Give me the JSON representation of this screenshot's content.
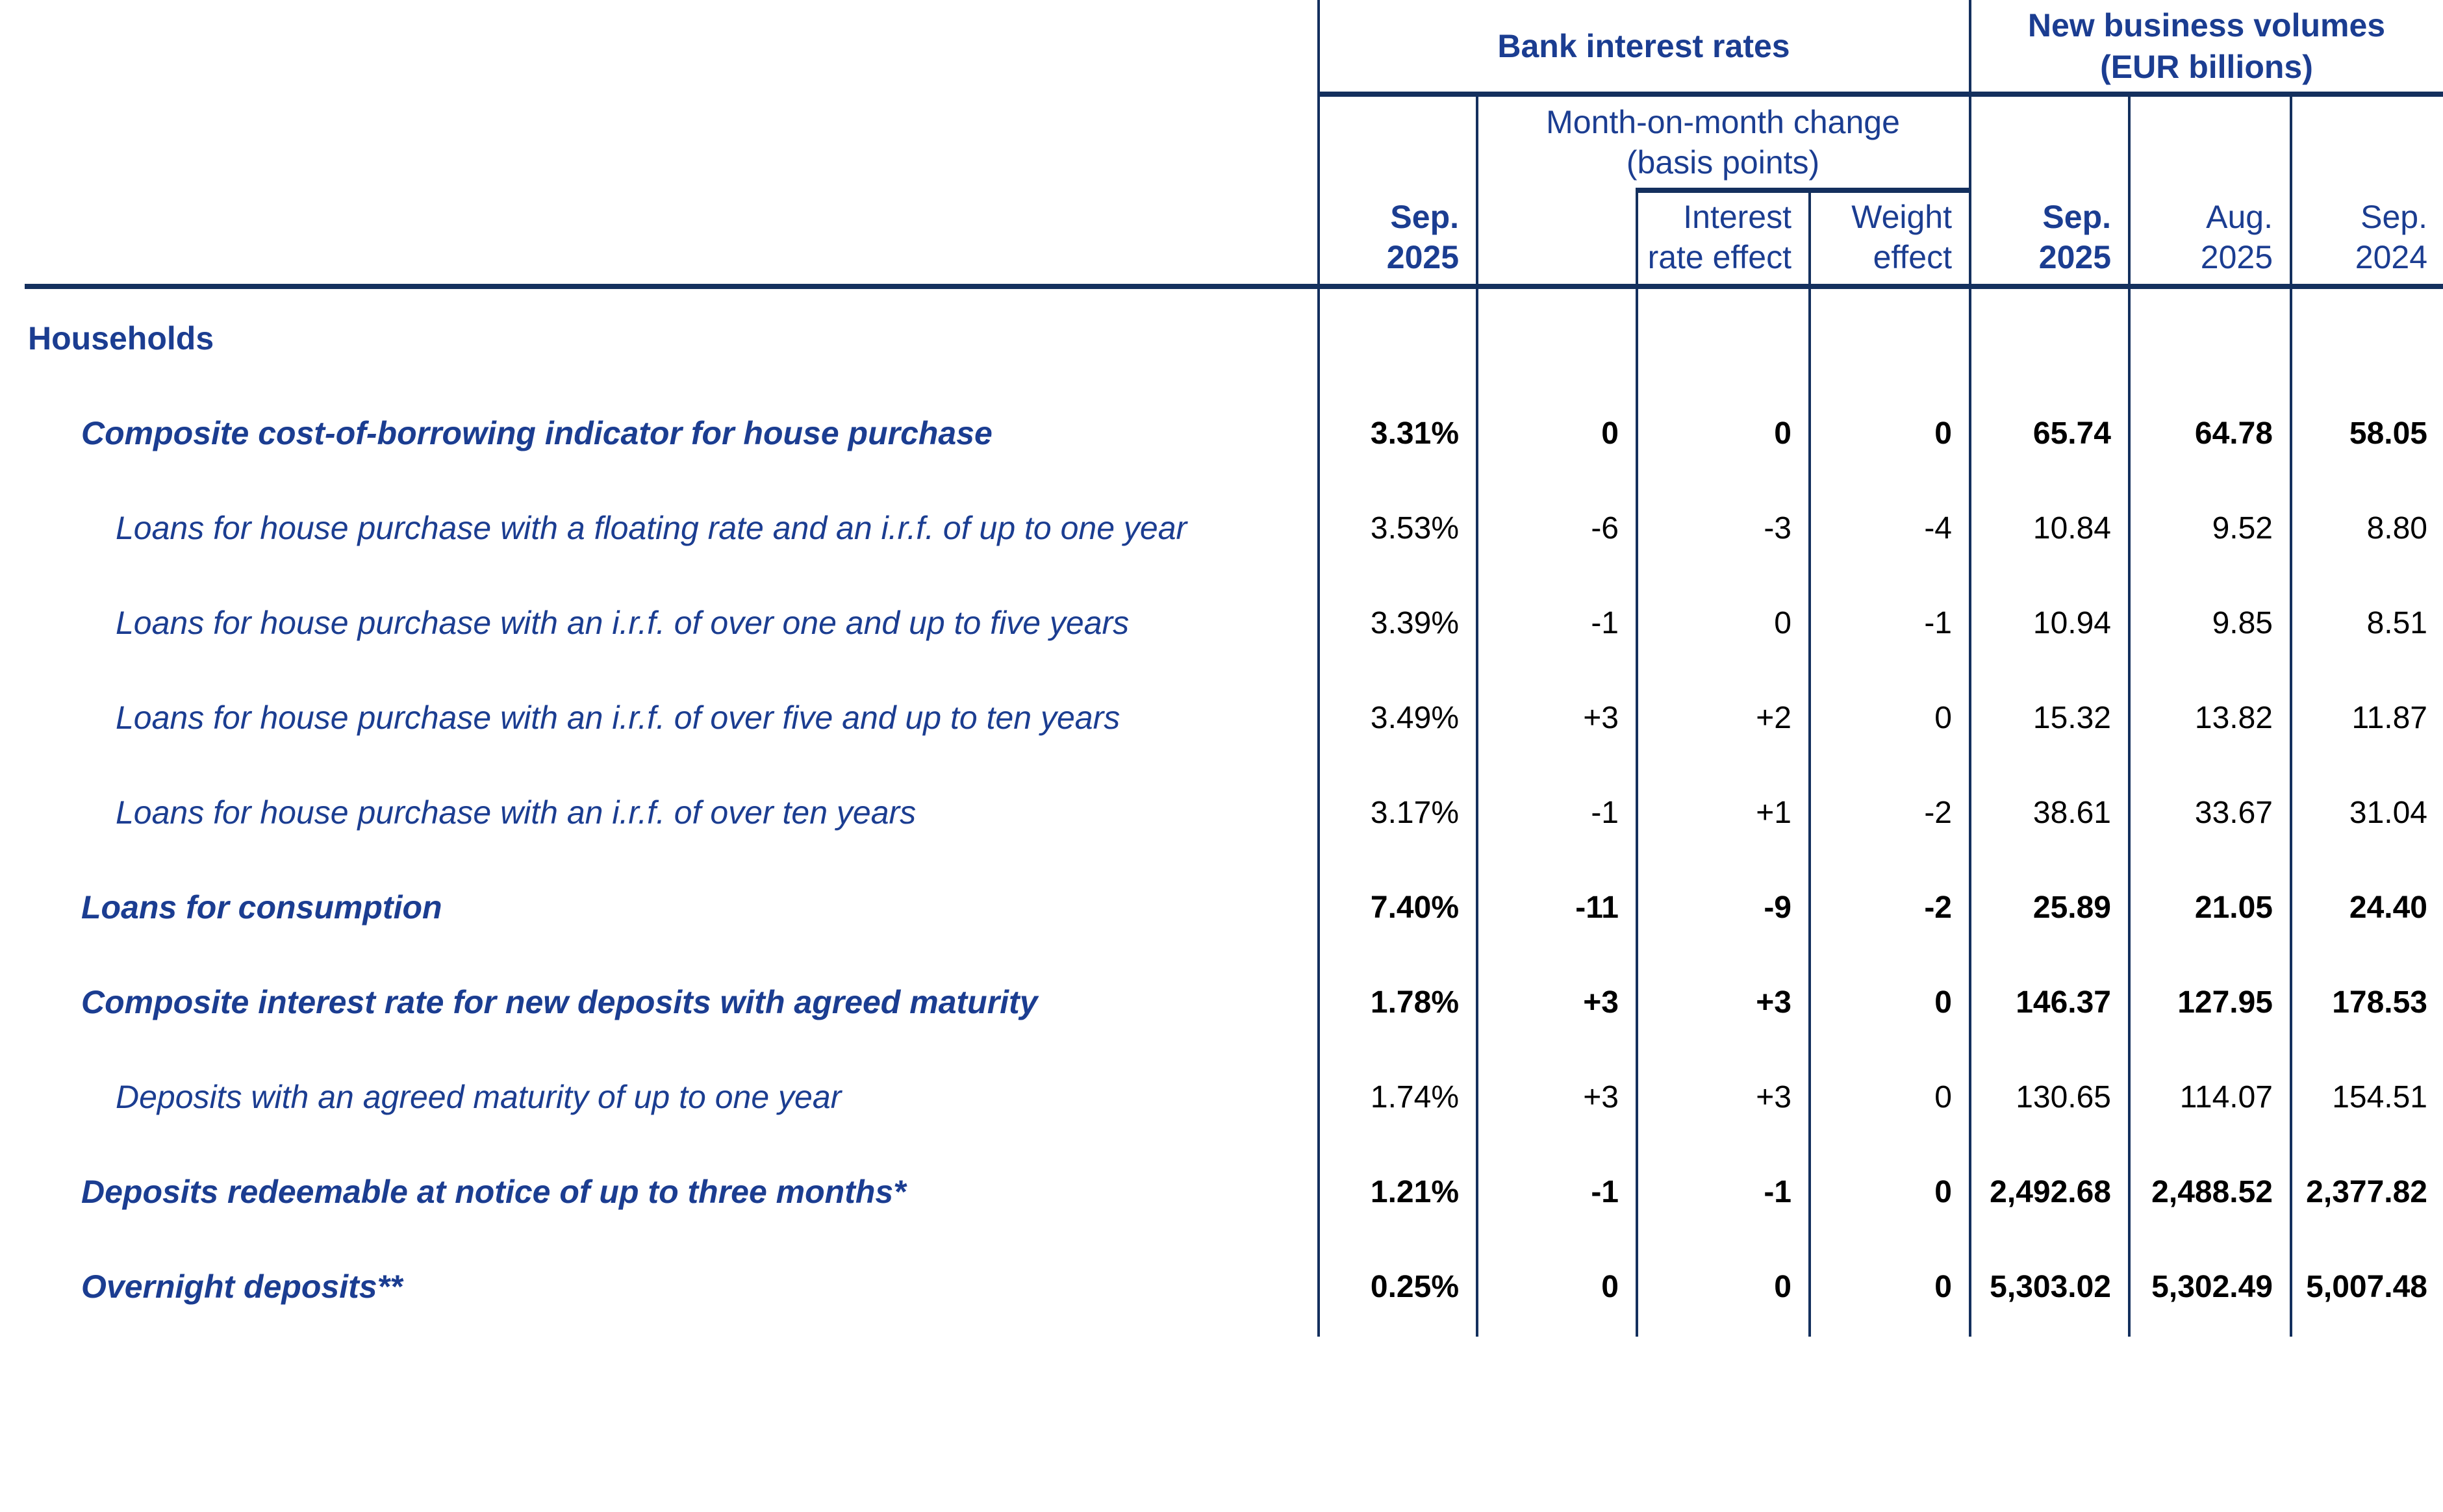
{
  "colors": {
    "text_blue": "#1b3d91",
    "grid_navy": "#14305e",
    "data_black": "#000000"
  },
  "header": {
    "group_bank": "Bank interest rates",
    "group_volumes_line1": "New business volumes",
    "group_volumes_line2": "(EUR billions)",
    "mom_line1": "Month-on-month change",
    "mom_line2": "(basis points)",
    "cols": [
      {
        "l1": "Sep.",
        "l2": "2025"
      },
      {
        "l1": "Interest",
        "l2": "rate effect"
      },
      {
        "l1": "Weight",
        "l2": "effect"
      },
      {
        "l1": "Sep.",
        "l2": "2025"
      },
      {
        "l1": "Aug.",
        "l2": "2025"
      },
      {
        "l1": "Sep.",
        "l2": "2024"
      }
    ]
  },
  "section_title": "Households",
  "rows": [
    {
      "label": "Composite cost-of-borrowing indicator for house purchase",
      "values": [
        "3.31%",
        "0",
        "0",
        "0",
        "65.74",
        "64.78",
        "58.05"
      ]
    },
    {
      "label": "Loans for house purchase with a floating rate and an i.r.f. of up to one year",
      "values": [
        "3.53%",
        "-6",
        "-3",
        "-4",
        "10.84",
        "9.52",
        "8.80"
      ]
    },
    {
      "label": "Loans for house purchase with an i.r.f. of over one and up to five years",
      "values": [
        "3.39%",
        "-1",
        "0",
        "-1",
        "10.94",
        "9.85",
        "8.51"
      ]
    },
    {
      "label": "Loans for house purchase with an i.r.f. of over five and up to ten years",
      "values": [
        "3.49%",
        "+3",
        "+2",
        "0",
        "15.32",
        "13.82",
        "11.87"
      ]
    },
    {
      "label": "Loans for house purchase with an i.r.f. of over ten years",
      "values": [
        "3.17%",
        "-1",
        "+1",
        "-2",
        "38.61",
        "33.67",
        "31.04"
      ]
    },
    {
      "label": "Loans for consumption",
      "values": [
        "7.40%",
        "-11",
        "-9",
        "-2",
        "25.89",
        "21.05",
        "24.40"
      ]
    },
    {
      "label": "Composite interest rate for new deposits with agreed maturity",
      "values": [
        "1.78%",
        "+3",
        "+3",
        "0",
        "146.37",
        "127.95",
        "178.53"
      ]
    },
    {
      "label": "Deposits with an agreed maturity of up to one year",
      "values": [
        "1.74%",
        "+3",
        "+3",
        "0",
        "130.65",
        "114.07",
        "154.51"
      ]
    },
    {
      "label": "Deposits redeemable at notice of up to three months*",
      "values": [
        "1.21%",
        "-1",
        "-1",
        "0",
        "2,492.68",
        "2,488.52",
        "2,377.82"
      ]
    },
    {
      "label": "Overnight deposits**",
      "values": [
        "0.25%",
        "0",
        "0",
        "0",
        "5,303.02",
        "5,302.49",
        "5,007.48"
      ]
    }
  ]
}
